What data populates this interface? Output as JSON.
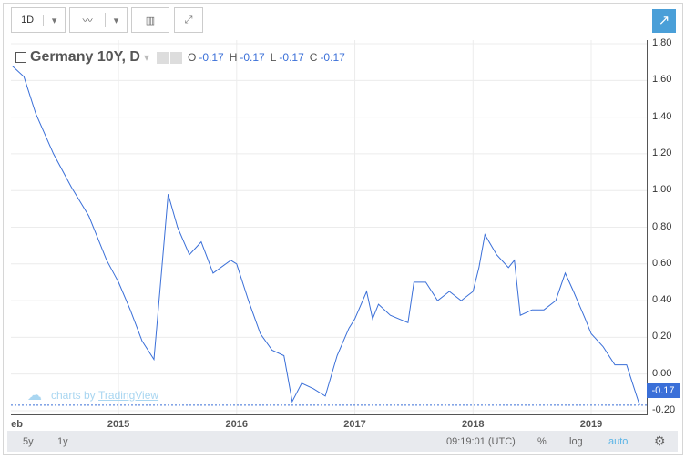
{
  "toolbar": {
    "interval": "1D"
  },
  "legend": {
    "title": "Germany 10Y, D",
    "o_label": "O",
    "o": "-0.17",
    "h_label": "H",
    "h": "-0.17",
    "l_label": "L",
    "l": "-0.17",
    "c_label": "C",
    "c": "-0.17"
  },
  "watermark": {
    "prefix": "charts by",
    "brand": "TradingView"
  },
  "bottom": {
    "r5y": "5y",
    "r1y": "1y",
    "time": "09:19:01 (UTC)",
    "pct": "%",
    "log": "log",
    "auto": "auto"
  },
  "colors": {
    "line": "#3a6fd8",
    "accent": "#3a6fd8",
    "auto": "#5ab4e6"
  },
  "chart_data": {
    "type": "line",
    "title": "Germany 10Y, D",
    "xlabel": "",
    "ylabel": "",
    "x_ticks": [
      "eb",
      "2015",
      "2016",
      "2017",
      "2018",
      "2019"
    ],
    "y_ticks": [
      "1.80",
      "1.60",
      "1.40",
      "1.20",
      "1.00",
      "0.80",
      "0.60",
      "0.40",
      "0.20",
      "0.00",
      "-0.20"
    ],
    "ylim": [
      -0.22,
      1.82
    ],
    "xlim": [
      2014.09,
      2019.47
    ],
    "last_value": "-0.17",
    "grid": true,
    "x": [
      2014.1,
      2014.2,
      2014.3,
      2014.45,
      2014.6,
      2014.75,
      2014.9,
      2015.0,
      2015.1,
      2015.2,
      2015.3,
      2015.35,
      2015.42,
      2015.5,
      2015.6,
      2015.7,
      2015.8,
      2015.95,
      2016.0,
      2016.1,
      2016.2,
      2016.3,
      2016.4,
      2016.47,
      2016.55,
      2016.65,
      2016.75,
      2016.85,
      2016.95,
      2017.0,
      2017.1,
      2017.15,
      2017.2,
      2017.3,
      2017.45,
      2017.5,
      2017.6,
      2017.7,
      2017.8,
      2017.9,
      2018.0,
      2018.05,
      2018.1,
      2018.2,
      2018.3,
      2018.35,
      2018.4,
      2018.5,
      2018.6,
      2018.7,
      2018.78,
      2018.85,
      2018.95,
      2019.0,
      2019.1,
      2019.2,
      2019.3,
      2019.35,
      2019.41
    ],
    "values": [
      1.68,
      1.62,
      1.42,
      1.2,
      1.02,
      0.86,
      0.62,
      0.5,
      0.35,
      0.18,
      0.08,
      0.45,
      0.98,
      0.8,
      0.65,
      0.72,
      0.55,
      0.62,
      0.6,
      0.4,
      0.22,
      0.13,
      0.1,
      -0.15,
      -0.05,
      -0.08,
      -0.12,
      0.1,
      0.25,
      0.3,
      0.45,
      0.3,
      0.38,
      0.32,
      0.28,
      0.5,
      0.5,
      0.4,
      0.45,
      0.4,
      0.45,
      0.58,
      0.76,
      0.65,
      0.58,
      0.62,
      0.32,
      0.35,
      0.35,
      0.4,
      0.55,
      0.45,
      0.3,
      0.22,
      0.15,
      0.05,
      0.05,
      -0.05,
      -0.17
    ]
  }
}
